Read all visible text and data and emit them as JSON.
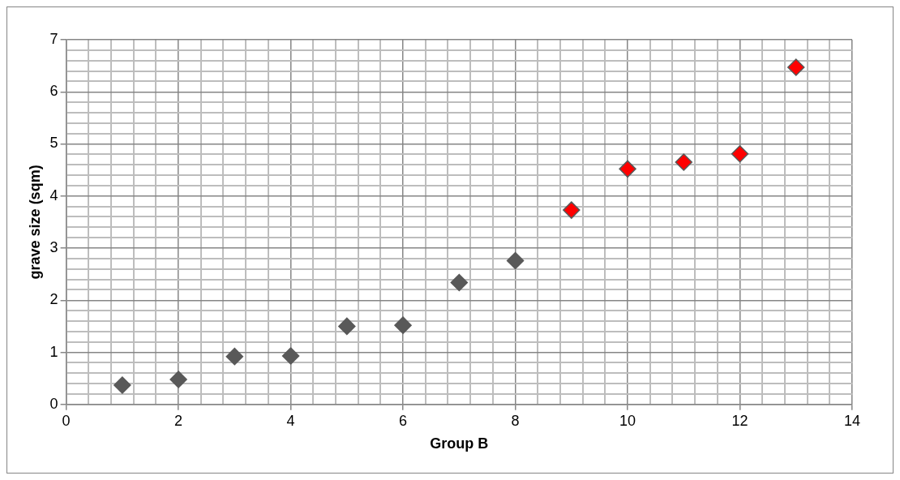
{
  "chart_data": {
    "type": "scatter",
    "xlabel": "Group B",
    "ylabel": "grave size (sqm)",
    "series": [
      {
        "color": "#595959",
        "x": [
          1,
          2,
          3,
          4,
          5,
          6,
          7,
          8
        ],
        "values": [
          0.37,
          0.48,
          0.92,
          0.93,
          1.5,
          1.52,
          2.34,
          2.76
        ]
      },
      {
        "color": "#ff0000",
        "x": [
          9,
          10,
          11,
          12,
          13
        ],
        "values": [
          3.73,
          4.52,
          4.65,
          4.81,
          6.47
        ]
      }
    ],
    "xlim": [
      0,
      14
    ],
    "ylim": [
      0,
      7
    ],
    "xticks": [
      0,
      {
        "value": 0.4,
        "label": null
      },
      {
        "value": 0.8,
        "label": null
      },
      {
        "value": 1.2,
        "label": null
      },
      {
        "value": 1.6,
        "label": null
      },
      2,
      {
        "value": 2.4,
        "label": null
      },
      {
        "value": 2.8,
        "label": null
      },
      {
        "value": 3.2,
        "label": null
      },
      {
        "value": 3.6,
        "label": null
      },
      4,
      {
        "value": 4.4,
        "label": null
      },
      {
        "value": 4.8,
        "label": null
      },
      {
        "value": 5.2,
        "label": null
      },
      {
        "value": 5.6,
        "label": null
      },
      6,
      {
        "value": 6.4,
        "label": null
      },
      {
        "value": 6.8,
        "label": null
      },
      {
        "value": 7.2,
        "label": null
      },
      {
        "value": 7.6,
        "label": null
      },
      8,
      {
        "value": 8.4,
        "label": null
      },
      {
        "value": 8.8,
        "label": null
      },
      {
        "value": 9.2,
        "label": null
      },
      {
        "value": 9.6,
        "label": null
      },
      10,
      {
        "value": 10.4,
        "label": null
      },
      {
        "value": 10.8,
        "label": null
      },
      {
        "value": 11.2,
        "label": null
      },
      {
        "value": 11.6,
        "label": null
      },
      12,
      {
        "value": 12.4,
        "label": null
      },
      {
        "value": 12.8,
        "label": null
      },
      {
        "value": 13.2,
        "label": null
      },
      {
        "value": 13.6,
        "label": null
      },
      14
    ],
    "yticks": [
      0,
      {
        "value": 0.2,
        "label": null
      },
      {
        "value": 0.4,
        "label": null
      },
      {
        "value": 0.6,
        "label": null
      },
      {
        "value": 0.8,
        "label": null
      },
      1,
      {
        "value": 1.2,
        "label": null
      },
      {
        "value": 1.4,
        "label": null
      },
      {
        "value": 1.6,
        "label": null
      },
      {
        "value": 1.8,
        "label": null
      },
      2,
      {
        "value": 2.2,
        "label": null
      },
      {
        "value": 2.4,
        "label": null
      },
      {
        "value": 2.6,
        "label": null
      },
      {
        "value": 2.8,
        "label": null
      },
      3,
      {
        "value": 3.2,
        "label": null
      },
      {
        "value": 3.4,
        "label": null
      },
      {
        "value": 3.6,
        "label": null
      },
      {
        "value": 3.8,
        "label": null
      },
      4,
      {
        "value": 4.2,
        "label": null
      },
      {
        "value": 4.4,
        "label": null
      },
      {
        "value": 4.6,
        "label": null
      },
      {
        "value": 4.8,
        "label": null
      },
      5,
      {
        "value": 5.2,
        "label": null
      },
      {
        "value": 5.4,
        "label": null
      },
      {
        "value": 5.6,
        "label": null
      },
      {
        "value": 5.8,
        "label": null
      },
      6,
      {
        "value": 6.2,
        "label": null
      },
      {
        "value": 6.4,
        "label": null
      },
      {
        "value": 6.6,
        "label": null
      },
      {
        "value": 6.8,
        "label": null
      },
      7
    ],
    "grid": true,
    "legend": false,
    "marker": "diamond"
  }
}
